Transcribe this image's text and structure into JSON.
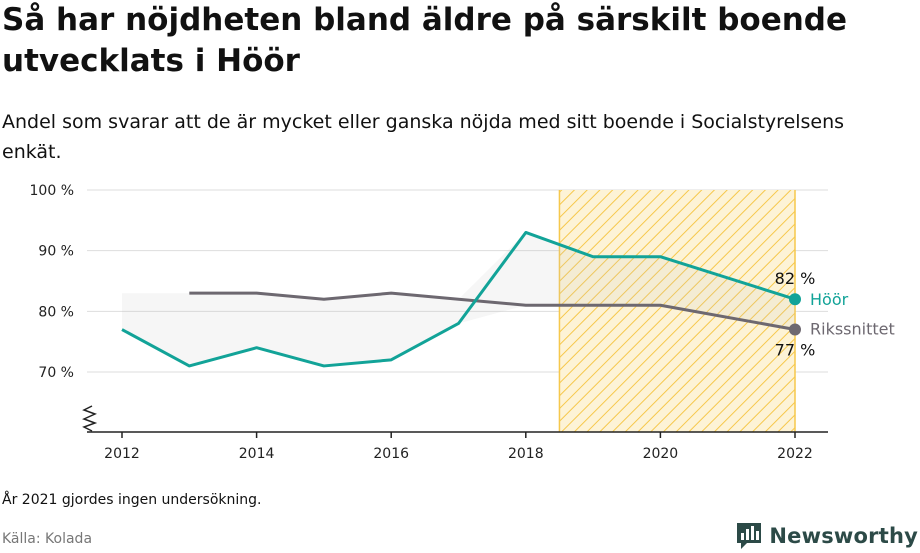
{
  "title": "Så har nöjdheten bland äldre på särskilt boende utvecklats i Höör",
  "subtitle": "Andel som svarar att de är mycket eller ganska nöjda med sitt boende i Socialstyrelsens enkät.",
  "note": "År 2021 gjordes ingen undersökning.",
  "source": "Källa: Kolada",
  "brand": {
    "name": "Newsworthy",
    "icon": "newsworthy-chart-bubble-icon"
  },
  "colors": {
    "hoor": "#12a398",
    "riket": "#6d6870",
    "hatch": "#f6c84c",
    "grid": "#dddddd"
  },
  "chart_data": {
    "type": "line",
    "x": [
      2012,
      2013,
      2014,
      2015,
      2016,
      2017,
      2018,
      2019,
      2020,
      2022
    ],
    "series": [
      {
        "name": "Höör",
        "values": [
          77,
          71,
          74,
          71,
          72,
          78,
          93,
          89,
          89,
          82
        ],
        "end_label": "82 %"
      },
      {
        "name": "Rikssnittet",
        "values": [
          null,
          83,
          83,
          82,
          83,
          82,
          81,
          81,
          81,
          77
        ],
        "end_label": "77 %"
      }
    ],
    "xlim": [
      2012,
      2022
    ],
    "ylim": [
      60,
      100
    ],
    "y_axis_break": true,
    "yticks": [
      70,
      80,
      90,
      100
    ],
    "ytick_labels": [
      "70 %",
      "80 %",
      "90 %",
      "100 %"
    ],
    "xticks": [
      2012,
      2014,
      2016,
      2018,
      2020,
      2022
    ],
    "xtick_labels": [
      "2012",
      "2014",
      "2016",
      "2018",
      "2020",
      "2022"
    ],
    "highlight_period": [
      2018.5,
      2022
    ],
    "grid": true
  }
}
